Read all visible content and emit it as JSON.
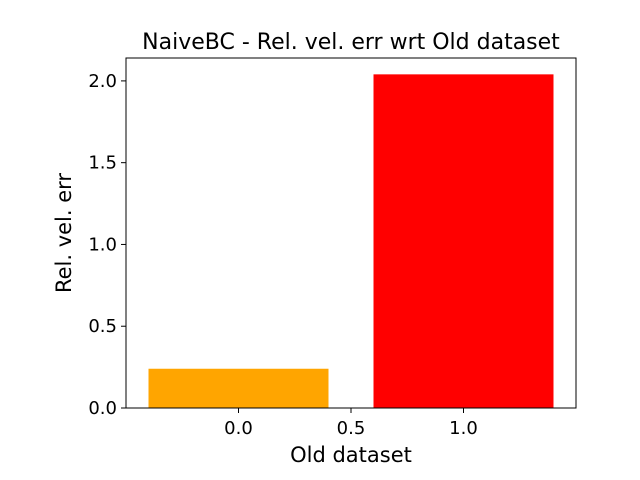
{
  "chart_data": {
    "type": "bar",
    "title": "NaiveBC - Rel. vel. err wrt Old dataset",
    "xlabel": "Old dataset",
    "ylabel": "Rel. vel. err",
    "bars": [
      {
        "x": 0.0,
        "value": 0.24,
        "color": "#ffa500"
      },
      {
        "x": 1.0,
        "value": 2.04,
        "color": "#ff0000"
      }
    ],
    "bar_width": 0.8,
    "xlim": [
      -0.5,
      1.5
    ],
    "ylim": [
      0,
      2.14
    ],
    "xticks": [
      0.0,
      0.5,
      1.0
    ],
    "xtick_labels": [
      "0.0",
      "0.5",
      "1.0"
    ],
    "yticks": [
      0.0,
      0.5,
      1.0,
      1.5,
      2.0
    ],
    "ytick_labels": [
      "0.0",
      "0.5",
      "1.0",
      "1.5",
      "2.0"
    ],
    "grid": false,
    "legend": false
  }
}
